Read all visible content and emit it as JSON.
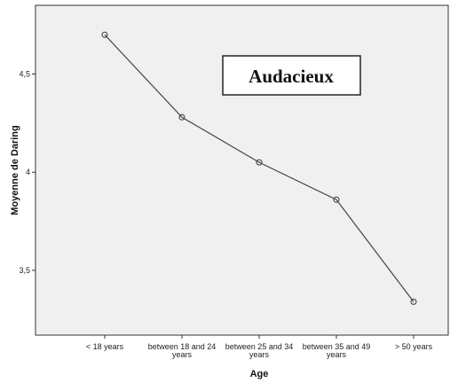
{
  "chart_data": {
    "type": "line",
    "title": "",
    "xlabel": "Age",
    "ylabel": "Moyenne de Daring",
    "categories": [
      [
        "< 18 years"
      ],
      [
        "between 18 and 24",
        "years"
      ],
      [
        "between 25 and 34",
        "years"
      ],
      [
        "between 35 and 49",
        "years"
      ],
      [
        "> 50 years"
      ]
    ],
    "values": [
      4.7,
      4.28,
      4.05,
      3.86,
      3.34
    ],
    "ylim": [
      3.17,
      4.85
    ],
    "yticks": [
      3.5,
      4.0,
      4.5
    ],
    "ytick_labels": [
      "3,5",
      "4",
      "4,5"
    ],
    "annotation": "Audacieux",
    "grid": false,
    "colors": {
      "plot_background": "#f0f0f0",
      "line": "#444444",
      "marker_stroke": "#444444"
    }
  }
}
